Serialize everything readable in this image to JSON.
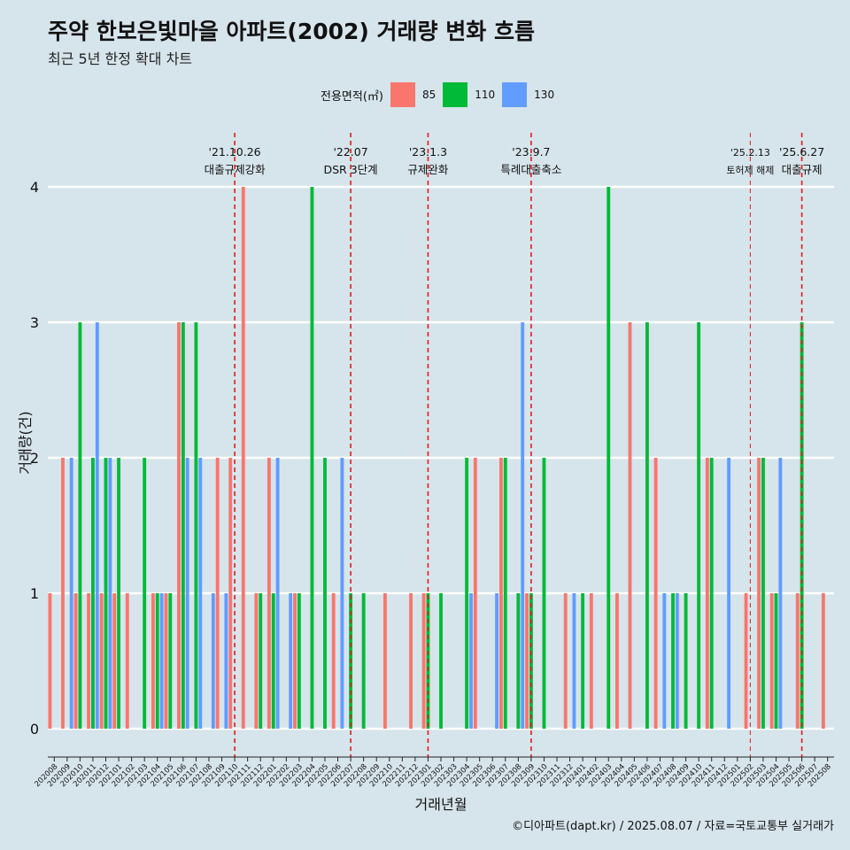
{
  "chart_data": {
    "type": "bar",
    "title": "주약 한보은빛마을 아파트(2002) 거래량 변화 흐름",
    "subtitle": "최근 5년 한정 확대 차트",
    "xlabel": "거래년월",
    "ylabel": "거래량(건)",
    "ylim": [
      0,
      4
    ],
    "yticks": [
      "0",
      "1",
      "2",
      "3",
      "4"
    ],
    "legend": {
      "title": "전용면적(㎡)",
      "position": "top"
    },
    "categories": [
      "202008",
      "202009",
      "202010",
      "202011",
      "202012",
      "202101",
      "202102",
      "202103",
      "202104",
      "202105",
      "202106",
      "202107",
      "202108",
      "202109",
      "202110",
      "202111",
      "202112",
      "202201",
      "202202",
      "202203",
      "202204",
      "202205",
      "202206",
      "202207",
      "202208",
      "202209",
      "202210",
      "202211",
      "202212",
      "202301",
      "202302",
      "202303",
      "202304",
      "202305",
      "202306",
      "202307",
      "202308",
      "202309",
      "202310",
      "202311",
      "202312",
      "202401",
      "202402",
      "202403",
      "202404",
      "202405",
      "202406",
      "202407",
      "202408",
      "202409",
      "202410",
      "202411",
      "202412",
      "202501",
      "202502",
      "202503",
      "202504",
      "202505",
      "202506",
      "202507",
      "202508"
    ],
    "series": [
      {
        "name": "85",
        "color": "#f8766d",
        "values": [
          1,
          2,
          1,
          1,
          1,
          1,
          1,
          0,
          1,
          1,
          3,
          0,
          0,
          2,
          2,
          4,
          1,
          2,
          0,
          1,
          0,
          0,
          1,
          0,
          0,
          0,
          1,
          0,
          1,
          1,
          0,
          0,
          0,
          2,
          0,
          2,
          0,
          1,
          0,
          0,
          1,
          0,
          1,
          0,
          1,
          3,
          0,
          2,
          0,
          0,
          0,
          2,
          0,
          0,
          1,
          2,
          1,
          0,
          1,
          0,
          1
        ]
      },
      {
        "name": "110",
        "color": "#00ba38",
        "values": [
          0,
          0,
          3,
          2,
          2,
          2,
          0,
          2,
          1,
          1,
          3,
          3,
          0,
          0,
          0,
          0,
          1,
          1,
          0,
          1,
          4,
          2,
          0,
          1,
          1,
          0,
          0,
          0,
          0,
          1,
          1,
          0,
          2,
          0,
          0,
          2,
          1,
          1,
          2,
          0,
          0,
          1,
          0,
          4,
          0,
          0,
          3,
          0,
          1,
          1,
          3,
          2,
          0,
          0,
          0,
          2,
          1,
          0,
          3,
          0,
          0
        ]
      },
      {
        "name": "130",
        "color": "#619cff",
        "values": [
          0,
          2,
          0,
          3,
          2,
          0,
          0,
          0,
          1,
          0,
          2,
          2,
          1,
          1,
          0,
          0,
          0,
          2,
          1,
          0,
          0,
          0,
          2,
          0,
          0,
          0,
          0,
          0,
          0,
          0,
          0,
          0,
          1,
          0,
          1,
          0,
          3,
          0,
          0,
          0,
          1,
          0,
          0,
          0,
          0,
          0,
          0,
          1,
          1,
          0,
          0,
          0,
          2,
          0,
          0,
          0,
          2,
          0,
          0,
          0,
          0
        ]
      }
    ],
    "annotations": [
      {
        "x": "202110",
        "date": "'21.10.26",
        "label": "대출규제강화"
      },
      {
        "x": "202207",
        "date": "'22.07",
        "label": "DSR 3단계"
      },
      {
        "x": "202301",
        "date": "'23.1.3",
        "label": "규제완화"
      },
      {
        "x": "202309",
        "date": "'23.9.7",
        "label": "특례대출축소"
      },
      {
        "x": "202502",
        "date": "'25.2.13",
        "label": "토허제 해제"
      },
      {
        "x": "202506",
        "date": "'25.6.27",
        "label": "대출규제"
      }
    ]
  },
  "caption": "©디아파트(dapt.kr) / 2025.08.07 / 자료=국토교통부 실거래가"
}
